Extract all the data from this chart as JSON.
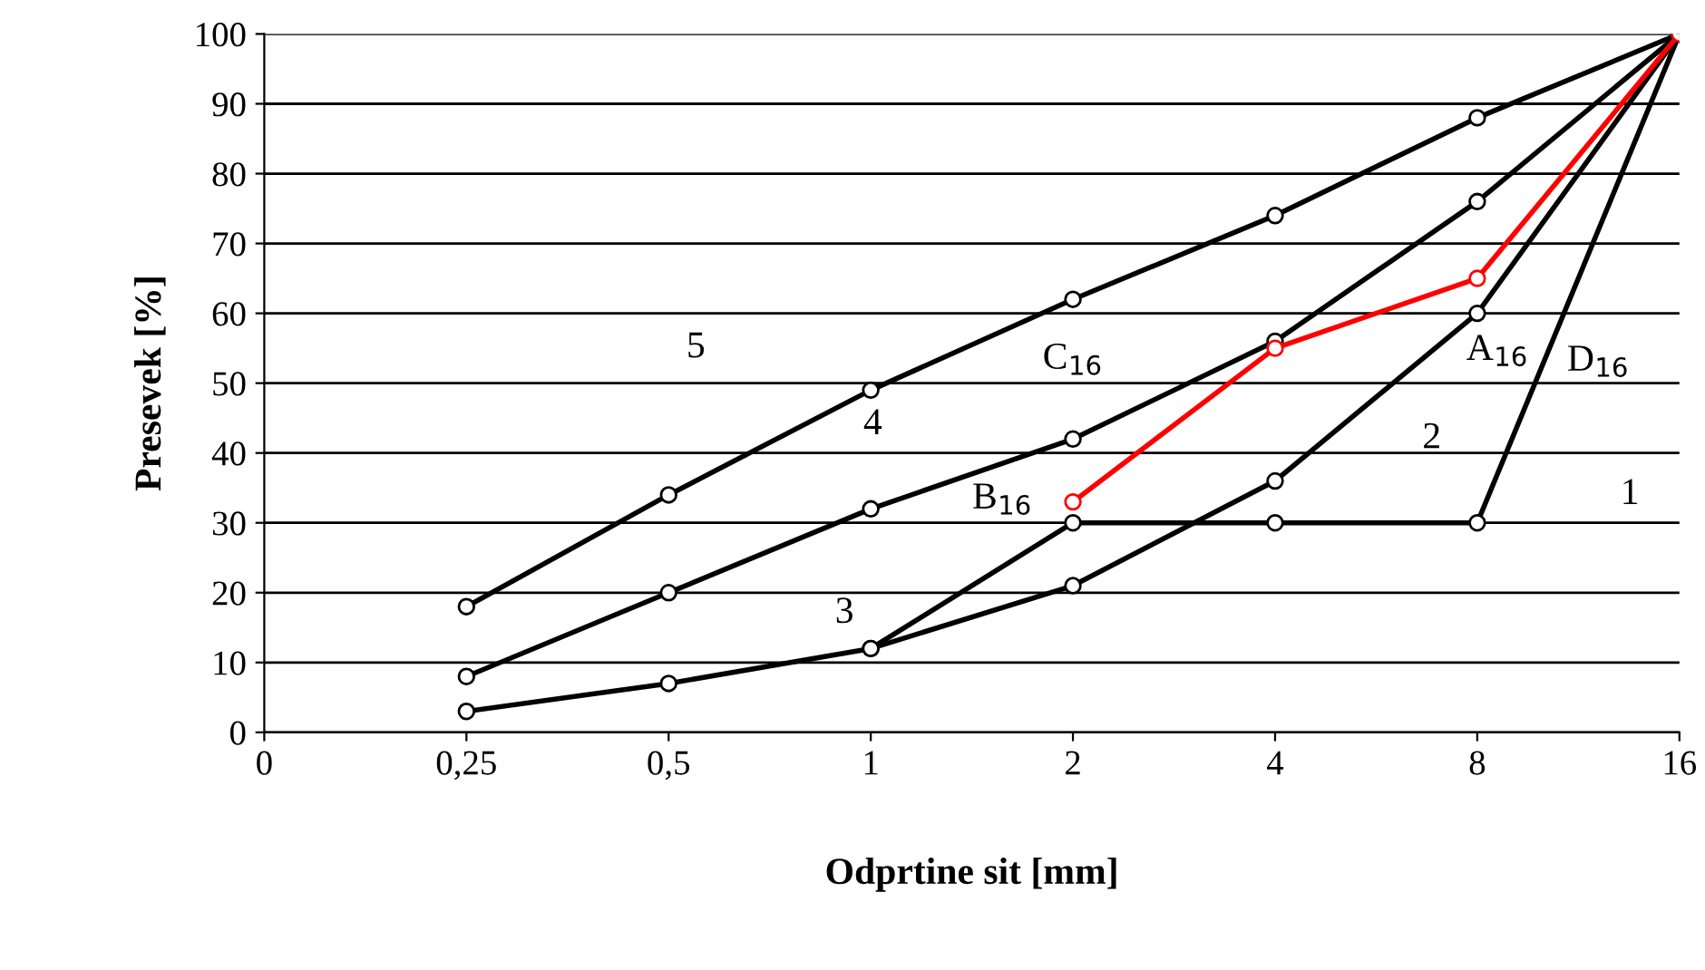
{
  "chart_data": {
    "type": "line",
    "xlabel": "Odprtine sit [mm]",
    "ylabel": "Presevek [%]",
    "log": "x",
    "grid": "y",
    "marker": "circle",
    "line_style": "solid",
    "xlim": [
      0.125,
      16
    ],
    "xticks": [
      {
        "value": 0.125,
        "label": "0"
      },
      {
        "value": 0.25,
        "label": "0,25"
      },
      {
        "value": 0.5,
        "label": "0,5"
      },
      1,
      2,
      4,
      8,
      16
    ],
    "ylim": [
      0,
      100
    ],
    "yticks": [
      0,
      10,
      20,
      30,
      40,
      50,
      60,
      70,
      80,
      90,
      100
    ],
    "series": [
      {
        "name": "A$_{16}$",
        "color": "#000000",
        "x": [
          0.25,
          0.5,
          1,
          2,
          4,
          8,
          16
        ],
        "values": [
          3,
          7,
          12,
          21,
          36,
          60,
          100
        ]
      },
      {
        "name": "B$_{16}$",
        "color": "#000000",
        "x": [
          0.25,
          0.5,
          1,
          2,
          4,
          8,
          16
        ],
        "values": [
          8,
          20,
          32,
          42,
          56,
          76,
          100
        ]
      },
      {
        "name": "C$_{16}$",
        "color": "#000000",
        "x": [
          0.25,
          0.5,
          1,
          2,
          4,
          8,
          16
        ],
        "values": [
          18,
          34,
          49,
          62,
          74,
          88,
          100
        ]
      },
      {
        "name": "D$_{16}$",
        "color": "#000000",
        "x": [
          1,
          2,
          4,
          8,
          16
        ],
        "values": [
          12,
          30,
          30,
          30,
          100
        ]
      },
      {
        "color": "#ff0000",
        "x": [
          2,
          4,
          8,
          16
        ],
        "values": [
          33,
          55,
          65,
          100
        ]
      }
    ],
    "annotations": [
      "5",
      "4",
      "3",
      "2",
      "1"
    ]
  }
}
